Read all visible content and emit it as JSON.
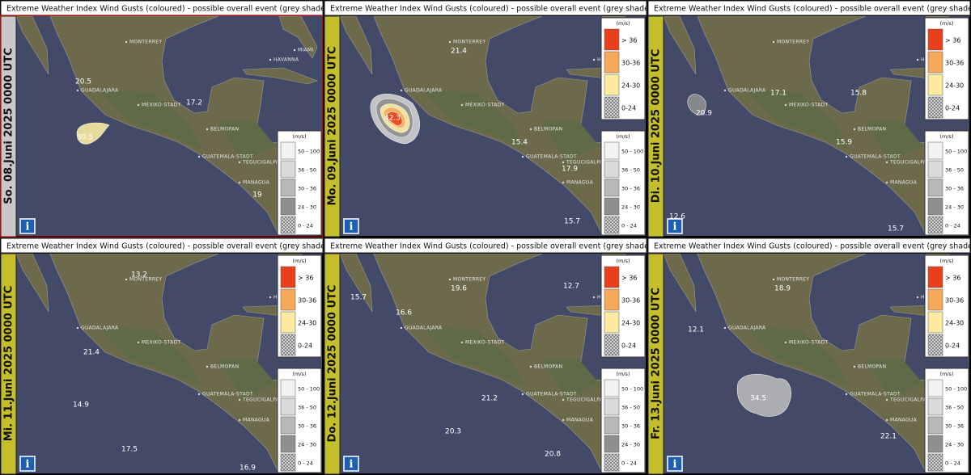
{
  "panels": [
    {
      "title": "Extreme Weather Index Wind Gusts (coloured) - possible overall event (grey shades)",
      "date": "So. 08.Juni 2025 0000 UTC",
      "date_color": "#c8c8c8",
      "coloured_legend": false,
      "values": [
        20.5,
        17.2,
        30.5,
        19
      ]
    },
    {
      "title": "Extreme Weather Index Wind Gusts (coloured) - possible overall event (grey shades)",
      "date": "Mo. 09.Juni 2025 0000 UTC",
      "date_color": "#c4bd2c",
      "coloured_legend": true,
      "values": [
        21.4,
        42.3,
        15.4,
        17.9,
        15.7
      ]
    },
    {
      "title": "Extreme Weather Index Wind Gusts (coloured) - possible overall event (grey shades)",
      "date": "Di. 10.Juni 2025 0000 UTC",
      "date_color": "#c4bd2c",
      "coloured_legend": true,
      "values": [
        17.1,
        15.8,
        20.9,
        15.9,
        12.6,
        15.7
      ]
    },
    {
      "title": "Extreme Weather Index Wind Gusts (coloured) - possible overall event (grey shades)",
      "date": "Mi. 11.Juni 2025 0000 UTC",
      "date_color": "#c4bd2c",
      "coloured_legend": true,
      "values": [
        13.2,
        21.4,
        14.9,
        17.5,
        16.9
      ]
    },
    {
      "title": "Extreme Weather Index Wind Gusts (coloured) - possible overall event (grey shades)",
      "date": "Do. 12.Juni 2025 0000 UTC",
      "date_color": "#c4bd2c",
      "coloured_legend": true,
      "values": [
        15.7,
        19.6,
        12.7,
        16.6,
        21.2,
        20.3,
        20.8
      ]
    },
    {
      "title": "Extreme Weather Index Wind Gusts (coloured) - possible overall event (grey shades)",
      "date": "Fr. 13.Juni 2025 0000 UTC",
      "date_color": "#c4bd2c",
      "coloured_legend": true,
      "values": [
        18.9,
        12.1,
        34.5,
        22.1
      ]
    }
  ],
  "cities": [
    "MONTERREY",
    "HAVANNA",
    "MIAMI",
    "GUADALAJARA",
    "MEXIKO-STADT",
    "BELMOPAN",
    "GUATEMALA-STADT",
    "TEGUCIGALPA",
    "MANAGUA"
  ],
  "legend_coloured": {
    "unit": "(m/s)",
    "items": [
      {
        "label": "> 36",
        "color": "#e8401c"
      },
      {
        "label": "30-36",
        "color": "#f6a95a"
      },
      {
        "label": "24-30",
        "color": "#fbeaa0"
      },
      {
        "label": "0-24",
        "color": "pattern"
      }
    ]
  },
  "legend_grey": {
    "unit": "(m/s)",
    "items": [
      {
        "label": "50 - 100",
        "color": "#f2f2f2"
      },
      {
        "label": "36 - 50",
        "color": "#d9d9d9"
      },
      {
        "label": "30 - 36",
        "color": "#b8b8b8"
      },
      {
        "label": "24 - 30",
        "color": "#8f8f8f"
      },
      {
        "label": "0 - 24",
        "color": "pattern"
      }
    ]
  },
  "info": "i"
}
